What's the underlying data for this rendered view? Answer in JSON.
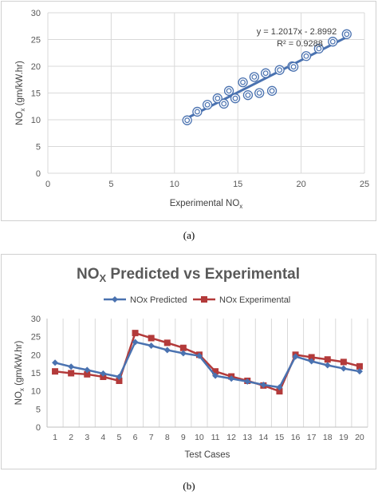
{
  "captions": {
    "a": "(a)",
    "b": "(b)"
  },
  "chart_data": [
    {
      "type": "scatter",
      "title": "",
      "xlabel": "Experimental NO",
      "xlabel_sub": "x",
      "ylabel": "NO",
      "ylabel_sub": "x",
      "ylabel_unit": " (gm/kW.hr)",
      "xlim": [
        0,
        25
      ],
      "ylim": [
        0,
        30
      ],
      "xticks": [
        0,
        5,
        10,
        15,
        20,
        25
      ],
      "yticks": [
        0,
        5,
        10,
        15,
        20,
        25,
        30
      ],
      "grid": true,
      "marker_color": "#4a72b0",
      "trendline_color": "#4a72b0",
      "equation": "y = 1.2017x - 2.8992",
      "r_squared": "R² = 0.9288",
      "points": [
        {
          "x": 11.0,
          "y": 9.9
        },
        {
          "x": 11.8,
          "y": 11.5
        },
        {
          "x": 12.6,
          "y": 12.8
        },
        {
          "x": 13.4,
          "y": 14.0
        },
        {
          "x": 13.9,
          "y": 13.0
        },
        {
          "x": 14.3,
          "y": 15.4
        },
        {
          "x": 14.8,
          "y": 14.0
        },
        {
          "x": 15.4,
          "y": 17.0
        },
        {
          "x": 15.8,
          "y": 14.6
        },
        {
          "x": 16.3,
          "y": 18.0
        },
        {
          "x": 16.7,
          "y": 15.0
        },
        {
          "x": 17.2,
          "y": 18.7
        },
        {
          "x": 17.7,
          "y": 15.4
        },
        {
          "x": 18.3,
          "y": 19.3
        },
        {
          "x": 19.3,
          "y": 20.0
        },
        {
          "x": 19.4,
          "y": 19.9
        },
        {
          "x": 20.4,
          "y": 21.9
        },
        {
          "x": 21.4,
          "y": 23.3
        },
        {
          "x": 22.5,
          "y": 24.6
        },
        {
          "x": 23.6,
          "y": 26.0
        }
      ],
      "trendline": {
        "x_start": 11.0,
        "x_end": 23.6,
        "slope": 1.2017,
        "intercept": -2.8992
      }
    },
    {
      "type": "line",
      "title": "NO",
      "title_sub": "X",
      "title_rest": " Predicted  vs Experimental",
      "xlabel": "Test Cases",
      "ylabel": "NO",
      "ylabel_sub": "x",
      "ylabel_unit": " (gm/kW.hr)",
      "ylim": [
        0,
        30
      ],
      "yticks": [
        0,
        5,
        10,
        15,
        20,
        25,
        30
      ],
      "categories": [
        "1",
        "2",
        "3",
        "4",
        "5",
        "6",
        "7",
        "8",
        "9",
        "10",
        "11",
        "12",
        "13",
        "14",
        "15",
        "16",
        "17",
        "18",
        "19",
        "20"
      ],
      "grid": "vertical",
      "legend_position": "top",
      "series": [
        {
          "name": "NOx Predicted",
          "color": "#4a72b0",
          "marker": "diamond",
          "values": [
            17.8,
            16.7,
            15.8,
            14.8,
            13.9,
            23.5,
            22.5,
            21.3,
            20.4,
            19.7,
            14.2,
            13.4,
            12.6,
            11.7,
            11.0,
            19.5,
            18.2,
            17.1,
            16.2,
            15.4
          ]
        },
        {
          "name": "NOx Experimental",
          "color": "#b33a3a",
          "marker": "square",
          "values": [
            15.4,
            14.9,
            14.6,
            13.9,
            12.8,
            26.0,
            24.6,
            23.3,
            21.9,
            20.0,
            15.4,
            14.0,
            12.8,
            11.5,
            9.9,
            20.0,
            19.3,
            18.7,
            18.0,
            16.8
          ]
        }
      ]
    }
  ]
}
